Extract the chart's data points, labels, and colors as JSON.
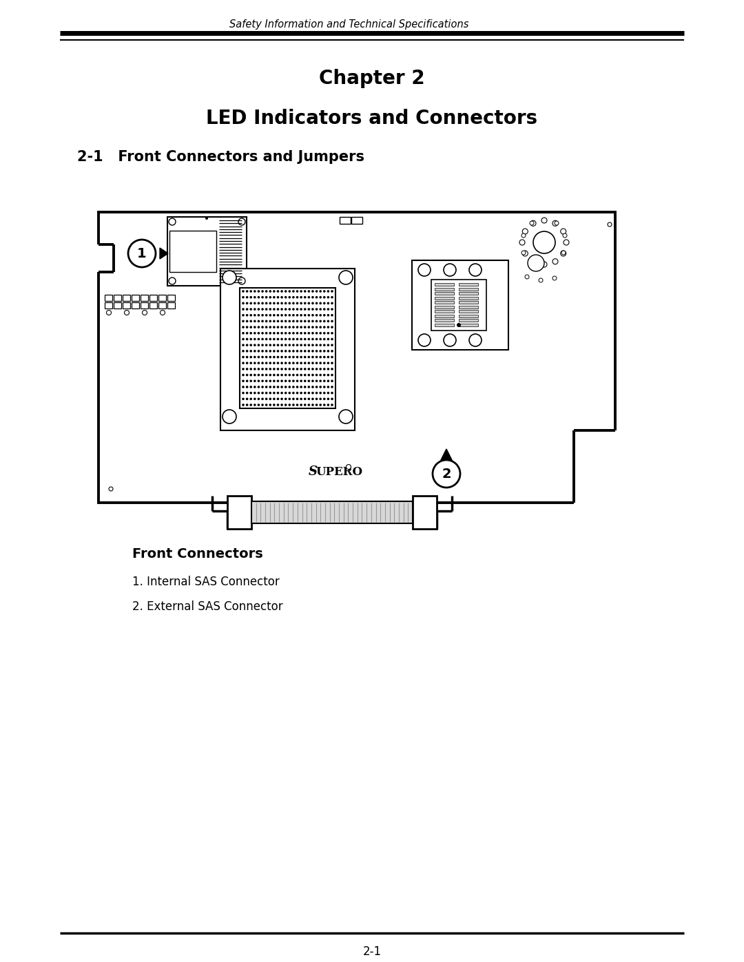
{
  "header_text": "Safety Information and Technical Specifications",
  "chapter_title": "Chapter 2",
  "section_title": "LED Indicators and Connectors",
  "subsection": "2-1   Front Connectors and Jumpers",
  "front_connectors_title": "Front Connectors",
  "connector_list": [
    "1. Internal SAS Connector",
    "2. External SAS Connector"
  ],
  "footer_text": "2-1",
  "bg_color": "#ffffff"
}
